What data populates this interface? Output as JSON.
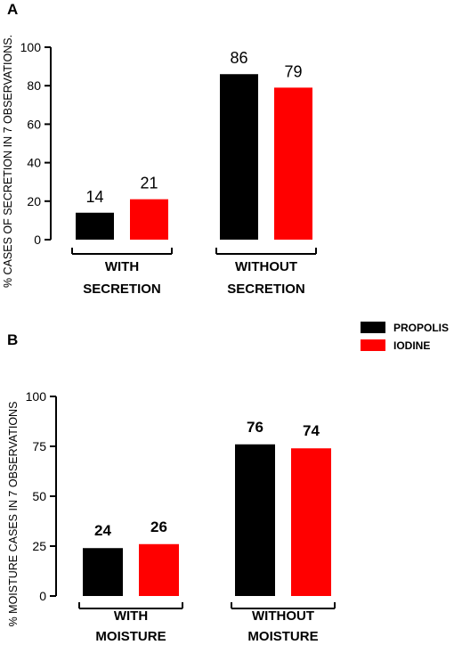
{
  "legend": {
    "items": [
      {
        "label": "PROPOLIS",
        "color": "#000000"
      },
      {
        "label": "IODINE",
        "color": "#ff0000"
      }
    ],
    "placement": "top-right"
  },
  "chart_data": [
    {
      "panel": "A",
      "type": "bar",
      "ylabel": "% CASES OF SECRETION IN 7 OBSERVATIONS.",
      "ylim": [
        0,
        100
      ],
      "yticks": [
        0,
        20,
        40,
        60,
        80,
        100
      ],
      "categories": [
        [
          "WITH",
          "SECRETION"
        ],
        [
          "WITHOUT",
          "SECRETION"
        ]
      ],
      "series": [
        {
          "name": "PROPOLIS",
          "color": "#000000",
          "values": [
            14,
            86
          ]
        },
        {
          "name": "IODINE",
          "color": "#ff0000",
          "values": [
            21,
            79
          ]
        }
      ],
      "data_labels": true,
      "grid": false
    },
    {
      "panel": "B",
      "type": "bar",
      "ylabel": "% MOISTURE CASES IN 7 OBSERVATIONS",
      "ylim": [
        0,
        100
      ],
      "yticks": [
        0,
        25,
        50,
        75,
        100
      ],
      "categories": [
        [
          "WITH",
          "MOISTURE"
        ],
        [
          "WITHOUT",
          "MOISTURE"
        ]
      ],
      "series": [
        {
          "name": "PROPOLIS",
          "color": "#000000",
          "values": [
            24,
            76
          ]
        },
        {
          "name": "IODINE",
          "color": "#ff0000",
          "values": [
            26,
            74
          ]
        }
      ],
      "data_labels": true,
      "grid": false
    }
  ]
}
